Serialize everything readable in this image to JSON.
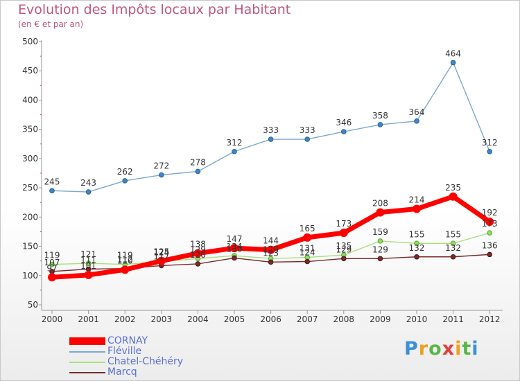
{
  "header": {
    "title": "Evolution des Impôts locaux par Habitant",
    "subtitle": "(en € et par an)"
  },
  "logo": {
    "text": "Proxiti"
  },
  "chart_data": {
    "type": "line",
    "title": "Evolution des Impôts locaux par Habitant",
    "subtitle": "(en € et par an)",
    "xlabel": "",
    "ylabel": "",
    "x": [
      "2000",
      "2001",
      "2002",
      "2003",
      "2004",
      "2005",
      "2006",
      "2007",
      "2008",
      "2009",
      "2010",
      "2011",
      "2012"
    ],
    "ylim": [
      50,
      500
    ],
    "yticks": [
      50,
      100,
      150,
      200,
      250,
      300,
      350,
      400,
      450,
      500
    ],
    "grid": false,
    "legend_position": "bottom-left",
    "series": [
      {
        "name": "CORNAY",
        "color": "#ff0000",
        "values": [
          97,
          101,
          110,
          125,
          138,
          147,
          144,
          165,
          173,
          208,
          214,
          235,
          192
        ]
      },
      {
        "name": "Fléville",
        "color": "#7aa8d0",
        "values": [
          245,
          243,
          262,
          272,
          278,
          312,
          333,
          333,
          346,
          358,
          364,
          464,
          312
        ]
      },
      {
        "name": "Chatel-Chéhéry",
        "color": "#a6e07c",
        "values": [
          119,
          121,
          119,
          124,
          129,
          134,
          129,
          131,
          135,
          159,
          155,
          155,
          173
        ]
      },
      {
        "name": "Marcq",
        "color": "#7a2a2a",
        "values": [
          107,
          111,
          112,
          117,
          120,
          130,
          123,
          124,
          129,
          129,
          132,
          132,
          136
        ]
      }
    ],
    "data_labels": [
      {
        "series": "CORNAY",
        "labels": [
          "97",
          "101",
          "110",
          "125",
          "138",
          "147",
          "144",
          "165",
          "173",
          "208",
          "214",
          "235",
          "192"
        ]
      },
      {
        "series": "Fléville",
        "labels": [
          "245",
          "243",
          "262",
          "272",
          "278",
          "312",
          "333",
          "333",
          "346",
          "358",
          "364",
          "464",
          "312"
        ]
      },
      {
        "series": "Chatel-Chéhéry",
        "labels": [
          "119",
          "121",
          "119",
          "124",
          "129",
          "134",
          "129",
          "131",
          "135",
          "159",
          "155",
          "155",
          "173"
        ]
      },
      {
        "series": "Marcq",
        "labels": [
          "107",
          "111",
          "112",
          "117",
          "120",
          "130",
          "123",
          "124",
          "129",
          "129",
          "132",
          "132",
          "136"
        ]
      }
    ]
  }
}
